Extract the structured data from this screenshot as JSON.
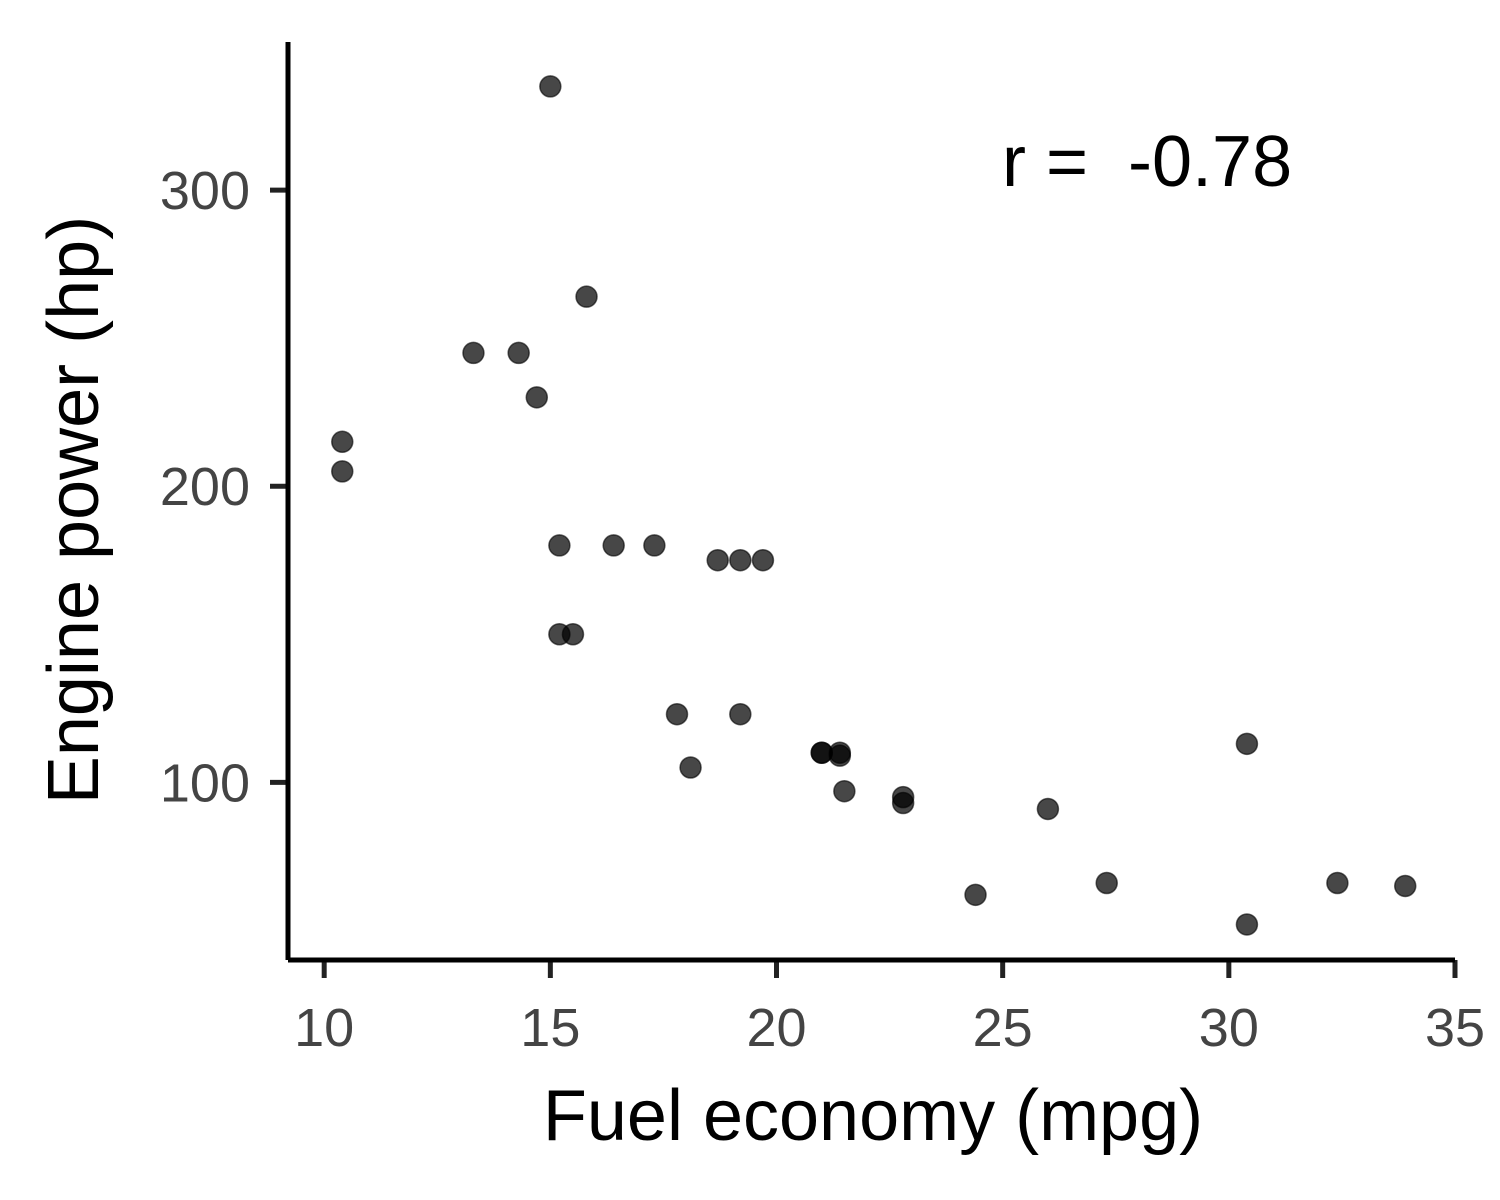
{
  "chart_data": {
    "type": "scatter",
    "title": "",
    "xlabel": "Fuel economy (mpg)",
    "ylabel": "Engine power (hp)",
    "xlim": [
      9.2,
      35
    ],
    "ylim": [
      40,
      350
    ],
    "x_ticks": [
      10,
      15,
      20,
      25,
      30,
      35
    ],
    "y_ticks": [
      100,
      200,
      300
    ],
    "x_tick_labels": [
      "10",
      "15",
      "20",
      "25",
      "30",
      "35"
    ],
    "y_tick_labels": [
      "100",
      "200",
      "300"
    ],
    "annotation": "r =  -0.78",
    "grid": false,
    "point_color": "#000000",
    "series": [
      {
        "points": [
          {
            "x": 21.0,
            "y": 110
          },
          {
            "x": 21.0,
            "y": 110
          },
          {
            "x": 22.8,
            "y": 93
          },
          {
            "x": 21.4,
            "y": 110
          },
          {
            "x": 18.7,
            "y": 175
          },
          {
            "x": 18.1,
            "y": 105
          },
          {
            "x": 14.3,
            "y": 245
          },
          {
            "x": 24.4,
            "y": 62
          },
          {
            "x": 22.8,
            "y": 95
          },
          {
            "x": 19.2,
            "y": 123
          },
          {
            "x": 17.8,
            "y": 123
          },
          {
            "x": 16.4,
            "y": 180
          },
          {
            "x": 17.3,
            "y": 180
          },
          {
            "x": 15.2,
            "y": 180
          },
          {
            "x": 10.4,
            "y": 205
          },
          {
            "x": 10.4,
            "y": 215
          },
          {
            "x": 14.7,
            "y": 230
          },
          {
            "x": 32.4,
            "y": 66
          },
          {
            "x": 30.4,
            "y": 52
          },
          {
            "x": 33.9,
            "y": 65
          },
          {
            "x": 21.5,
            "y": 97
          },
          {
            "x": 15.5,
            "y": 150
          },
          {
            "x": 15.2,
            "y": 150
          },
          {
            "x": 13.3,
            "y": 245
          },
          {
            "x": 19.2,
            "y": 175
          },
          {
            "x": 27.3,
            "y": 66
          },
          {
            "x": 26.0,
            "y": 91
          },
          {
            "x": 30.4,
            "y": 113
          },
          {
            "x": 15.8,
            "y": 264
          },
          {
            "x": 19.7,
            "y": 175
          },
          {
            "x": 15.0,
            "y": 335
          },
          {
            "x": 21.4,
            "y": 109
          }
        ]
      }
    ]
  }
}
